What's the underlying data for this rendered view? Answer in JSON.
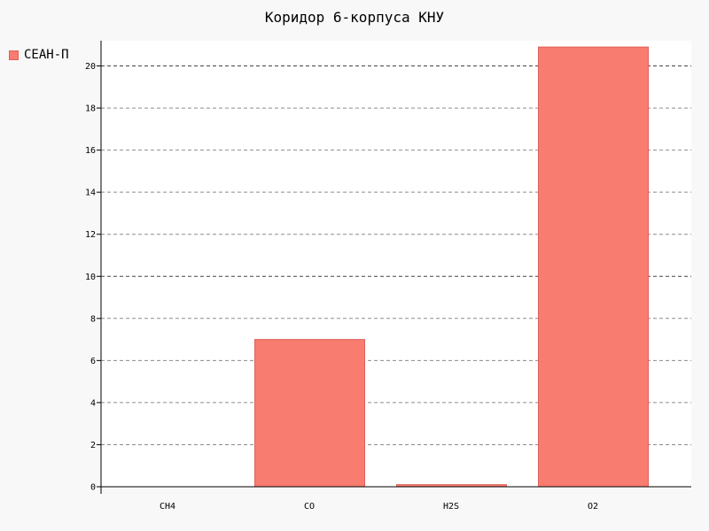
{
  "chart_data": {
    "type": "bar",
    "title": "Коридор 6-корпуса КНУ",
    "xlabel": "",
    "ylabel": "",
    "categories": [
      "CH4",
      "CO",
      "H2S",
      "O2"
    ],
    "series": [
      {
        "name": "СЕАН-П",
        "values": [
          0,
          7,
          0.1,
          20.9
        ]
      }
    ],
    "ylim": [
      0,
      21.2
    ],
    "yticks": [
      0,
      2,
      4,
      6,
      8,
      10,
      12,
      14,
      16,
      18,
      20
    ],
    "major_yticks": [
      10,
      20
    ],
    "grid": true,
    "legend": "top-left",
    "colors": {
      "bar_fill": "#f87c6f",
      "bar_stroke": "#e0615a",
      "plot_background": "#ffffff",
      "page_background": "#f8f8f8",
      "grid": "#8c8c8c",
      "grid_major": "#444444",
      "axis": "#000000"
    }
  }
}
